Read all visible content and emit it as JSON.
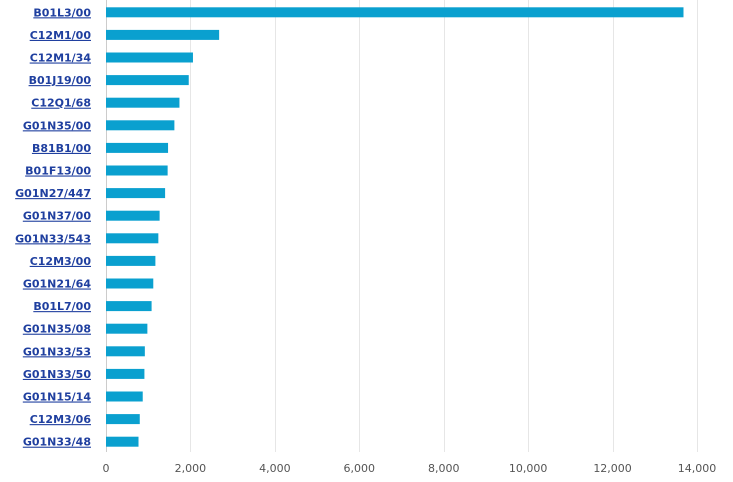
{
  "chart_data": {
    "type": "bar",
    "orientation": "horizontal",
    "categories": [
      "B01L3/00",
      "C12M1/00",
      "C12M1/34",
      "B01J19/00",
      "C12Q1/68",
      "G01N35/00",
      "B81B1/00",
      "B01F13/00",
      "G01N27/447",
      "G01N37/00",
      "G01N33/543",
      "C12M3/00",
      "G01N21/64",
      "B01L7/00",
      "G01N35/08",
      "G01N33/53",
      "G01N33/50",
      "G01N15/14",
      "C12M3/06",
      "G01N33/48"
    ],
    "values": [
      13680,
      2680,
      2060,
      1960,
      1740,
      1620,
      1470,
      1460,
      1400,
      1270,
      1240,
      1170,
      1120,
      1080,
      980,
      920,
      910,
      870,
      800,
      770
    ],
    "xlim": [
      0,
      14000
    ],
    "xticks": [
      0,
      2000,
      4000,
      6000,
      8000,
      10000,
      12000,
      14000
    ],
    "xtick_labels": [
      "0",
      "2,000",
      "4,000",
      "6,000",
      "8,000",
      "10,000",
      "12,000",
      "14,000"
    ],
    "bar_color": "#0aa0cf",
    "label_color": "#1f3f9f",
    "grid": true,
    "title": "",
    "xlabel": "",
    "ylabel": ""
  }
}
